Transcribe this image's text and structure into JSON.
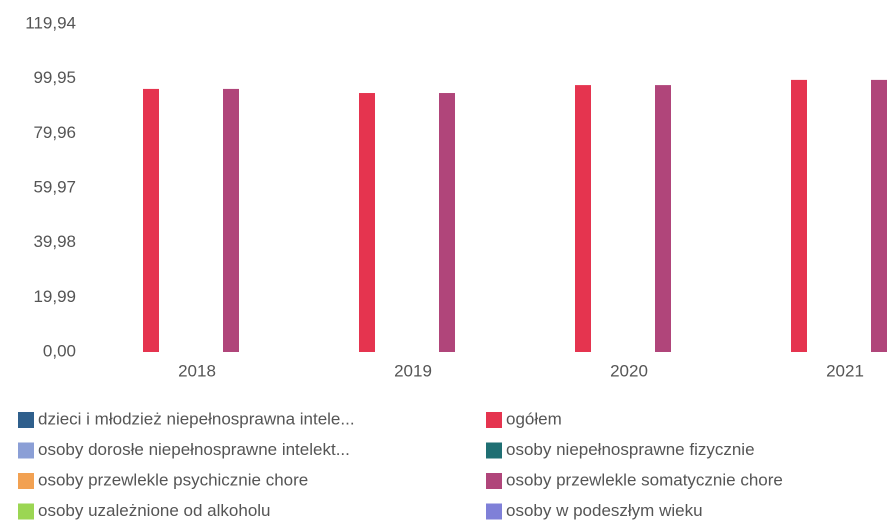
{
  "chart_data": {
    "type": "bar",
    "categories": [
      "2018",
      "2019",
      "2020",
      "2021"
    ],
    "series": [
      {
        "name": "dzieci i młodzież niepełnosprawna intele...",
        "color": "#2f5f8c",
        "values": [
          null,
          null,
          null,
          null
        ]
      },
      {
        "name": "ogółem",
        "color": "#e5344f",
        "values": [
          96.2,
          94.7,
          97.6,
          99.5
        ]
      },
      {
        "name": "osoby dorosłe niepełnosprawne intelekt...",
        "color": "#8b9fd6",
        "values": [
          null,
          null,
          null,
          null
        ]
      },
      {
        "name": "osoby niepełnosprawne fizycznie",
        "color": "#1f6f73",
        "values": [
          null,
          null,
          null,
          null
        ]
      },
      {
        "name": "osoby przewlekle psychicznie chore",
        "color": "#f2a152",
        "values": [
          null,
          null,
          null,
          null
        ]
      },
      {
        "name": "osoby przewlekle somatycznie chore",
        "color": "#b0457a",
        "values": [
          96.2,
          94.7,
          97.6,
          99.5
        ]
      },
      {
        "name": "osoby uzależnione od alkoholu",
        "color": "#9bd653",
        "values": [
          null,
          null,
          null,
          null
        ]
      },
      {
        "name": "osoby w podeszłym wieku",
        "color": "#7f80d8",
        "values": [
          null,
          null,
          null,
          null
        ]
      }
    ],
    "ylim": [
      0,
      119.94
    ],
    "yticks": [
      {
        "value": 0,
        "label": "0,00"
      },
      {
        "value": 19.99,
        "label": "19,99"
      },
      {
        "value": 39.98,
        "label": "39,98"
      },
      {
        "value": 59.97,
        "label": "59,97"
      },
      {
        "value": 79.96,
        "label": "79,96"
      },
      {
        "value": 99.95,
        "label": "99,95"
      },
      {
        "value": 119.94,
        "label": "119,94"
      }
    ],
    "grid": false
  }
}
